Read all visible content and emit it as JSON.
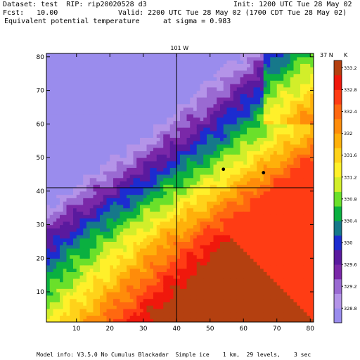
{
  "header": {
    "dataset": "Dataset: test  RIP: rip20020528 d3",
    "init": "Init: 1200 UTC Tue 28 May 02",
    "fcst": "Fcst:   10.00",
    "valid": "Valid: 2200 UTC Tue 28 May 02 (1700 CDT Tue 28 May 02)",
    "field": "Equivalent potential temperature",
    "sigma": "at sigma = 0.983"
  },
  "footer": {
    "model_info": "Model info: V3.5.0 No Cumulus Blackadar  Simple ice    1 km,  29 levels,    3 sec"
  },
  "chart_data": {
    "type": "heatmap",
    "title": "Equivalent potential temperature",
    "units": "K",
    "xlim": [
      1,
      81
    ],
    "ylim": [
      1,
      81
    ],
    "x_ticks": [
      10,
      20,
      30,
      40,
      50,
      60,
      70,
      80
    ],
    "y_ticks": [
      10,
      20,
      30,
      40,
      50,
      60,
      70,
      80
    ],
    "cross_lines": {
      "vertical": {
        "x": 40,
        "label": "101 W"
      },
      "horizontal": {
        "y": 41,
        "label": "37 N"
      }
    },
    "markers": [
      {
        "x": 54,
        "y": 46.5
      },
      {
        "x": 66,
        "y": 45.5
      }
    ],
    "colorbar": {
      "labels": [
        "328.8",
        "329.2",
        "329.6",
        "330",
        "330.4",
        "330.8",
        "331.2",
        "331.6",
        "332",
        "332.4",
        "332.8",
        "333.2"
      ],
      "colors": [
        "#9a8ced",
        "#b494e8",
        "#9a6ad2",
        "#7a28a8",
        "#5a1a9e",
        "#1c2cd0",
        "#16788a",
        "#0ab040",
        "#6ae02a",
        "#d2ee2a",
        "#fff02a",
        "#ffd21a",
        "#ffb00a",
        "#ff8c0a",
        "#ff6810",
        "#ff3c14",
        "#f0180c",
        "#b44010"
      ]
    }
  }
}
